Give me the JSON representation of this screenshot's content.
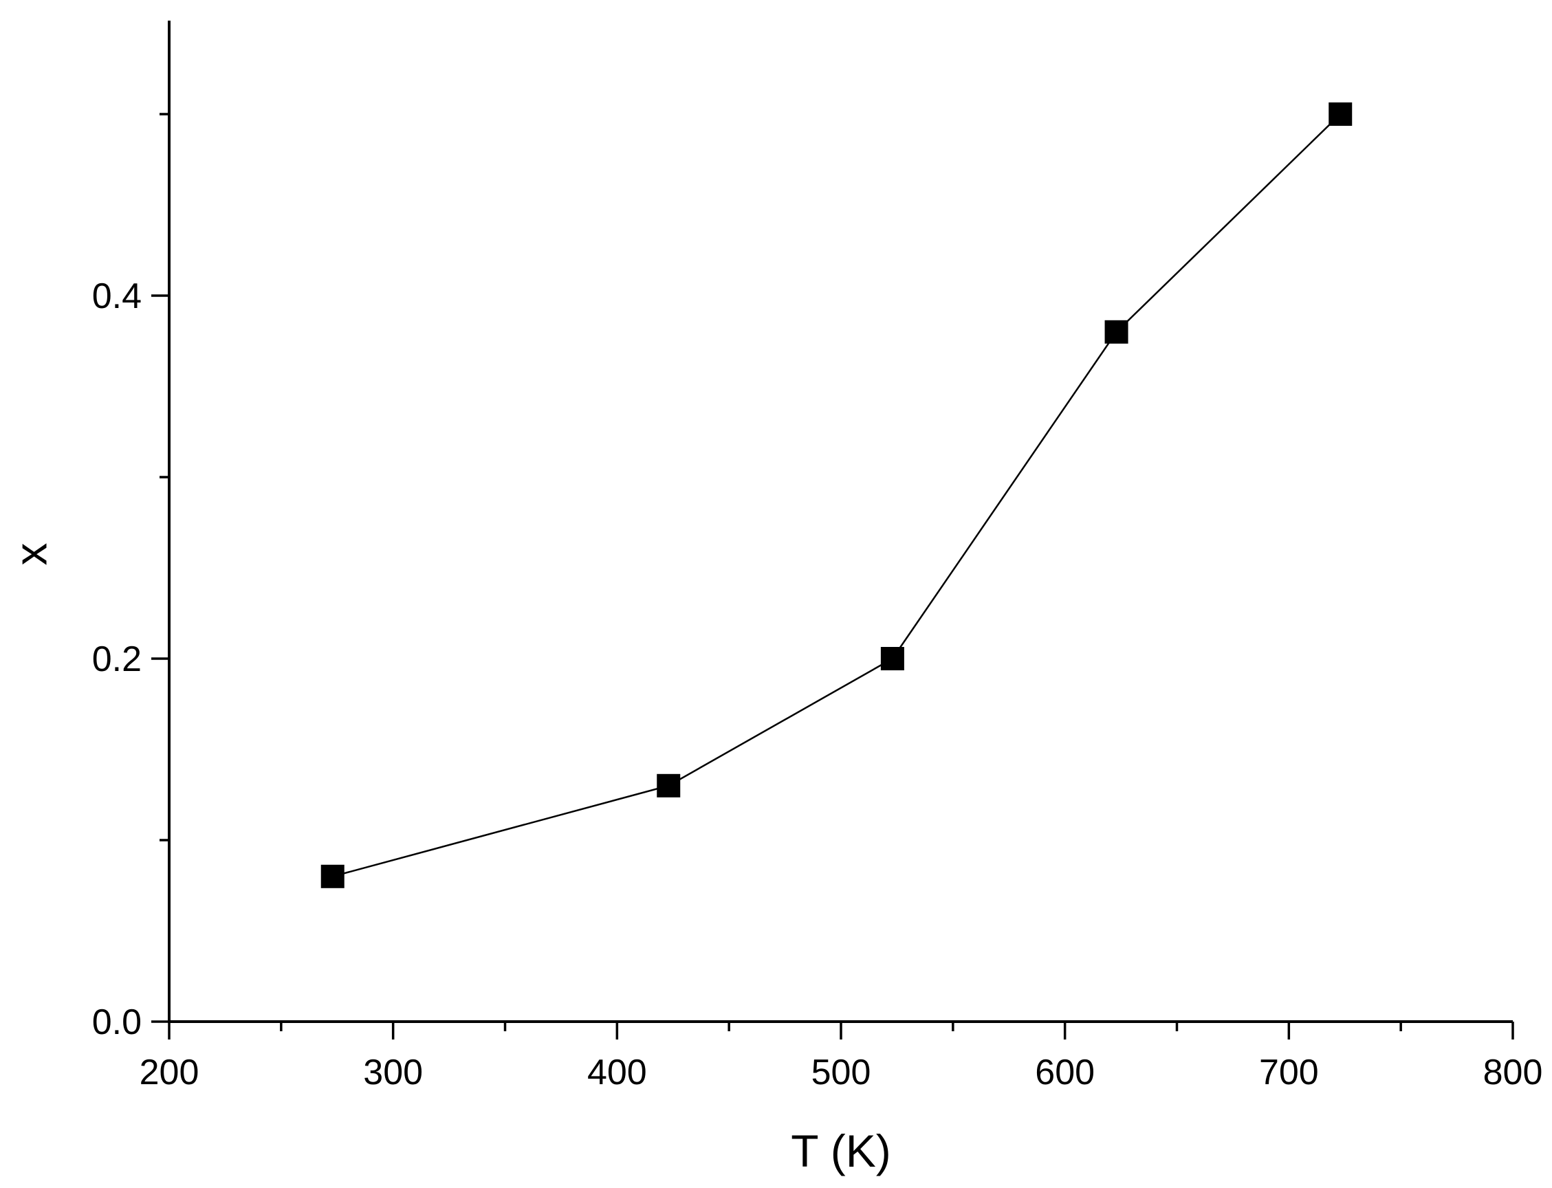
{
  "chart_data": {
    "type": "line",
    "title": "",
    "xlabel": "T (K)",
    "ylabel": "x",
    "xlim": [
      200,
      800
    ],
    "ylim": [
      0.0,
      0.55
    ],
    "x_ticks": [
      200,
      300,
      400,
      500,
      600,
      700,
      800
    ],
    "x_tick_labels": [
      "200",
      "300",
      "400",
      "500",
      "600",
      "700",
      "800"
    ],
    "x_minor_ticks": [
      250,
      350,
      450,
      550,
      650,
      750
    ],
    "y_ticks": [
      0.0,
      0.2,
      0.4
    ],
    "y_tick_labels": [
      "0.0",
      "0.2",
      "0.4"
    ],
    "y_minor_ticks": [
      0.1,
      0.3,
      0.5
    ],
    "grid": false,
    "legend": "none",
    "marker": "square",
    "color": "#000000",
    "series": [
      {
        "x": [
          273,
          423,
          523,
          623,
          723
        ],
        "y": [
          0.08,
          0.13,
          0.2,
          0.38,
          0.5
        ]
      }
    ]
  }
}
